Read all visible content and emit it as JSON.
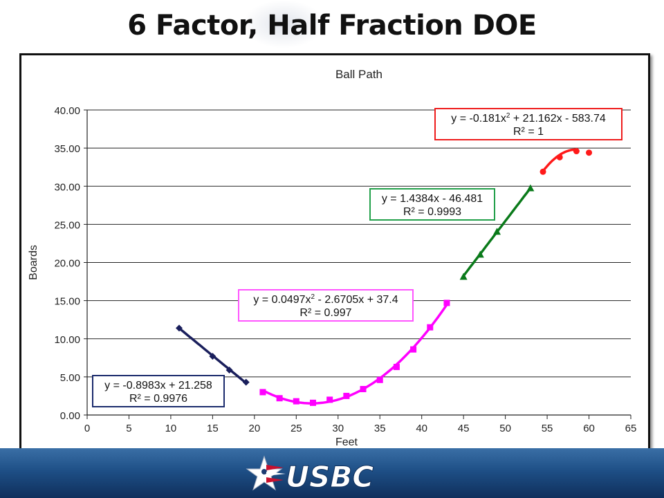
{
  "slide": {
    "title": "6 Factor, Half Fraction DOE",
    "logo_text": "USBC"
  },
  "chart_data": {
    "type": "scatter",
    "title": "Ball Path",
    "xlabel": "Feet",
    "ylabel": "Boards",
    "xlim": [
      0,
      65
    ],
    "ylim": [
      0,
      40
    ],
    "x_ticks": [
      0,
      5,
      10,
      15,
      20,
      25,
      30,
      35,
      40,
      45,
      50,
      55,
      60,
      65
    ],
    "y_ticks": [
      "0.00",
      "5.00",
      "10.00",
      "15.00",
      "20.00",
      "25.00",
      "30.00",
      "35.00",
      "40.00"
    ],
    "grid": "horizontal",
    "legend": "none",
    "series": [
      {
        "color": "#1a1f5c",
        "marker": "diamond",
        "points": [
          [
            11,
            11.4
          ],
          [
            15,
            7.7
          ],
          [
            17,
            5.9
          ],
          [
            19,
            4.3
          ]
        ],
        "trend": {
          "kind": "linear",
          "coef": [
            21.258,
            -0.8983
          ],
          "range": [
            11,
            19
          ]
        },
        "equation": "y = -0.8983x + 21.258",
        "r2": "R² = 0.9976",
        "box_color": "#1a2a6c"
      },
      {
        "color": "#ff00ff",
        "marker": "square",
        "points": [
          [
            21,
            3.0
          ],
          [
            23,
            2.2
          ],
          [
            25,
            1.8
          ],
          [
            27,
            1.6
          ],
          [
            29,
            2.0
          ],
          [
            31,
            2.5
          ],
          [
            33,
            3.4
          ],
          [
            35,
            4.6
          ],
          [
            37,
            6.3
          ],
          [
            39,
            8.6
          ],
          [
            41,
            11.5
          ],
          [
            43,
            14.7
          ]
        ],
        "trend": {
          "kind": "poly2",
          "coef": [
            37.4,
            -2.6705,
            0.0497
          ],
          "range": [
            21,
            43
          ]
        },
        "equation": "y = 0.0497x2 - 2.6705x + 37.4",
        "r2": "R² = 0.997",
        "box_color": "#ff55ff"
      },
      {
        "color": "#0a7a1a",
        "marker": "triangle",
        "points": [
          [
            45,
            18.1
          ],
          [
            47,
            21.0
          ],
          [
            49,
            24.0
          ],
          [
            53,
            29.7
          ]
        ],
        "trend": {
          "kind": "linear",
          "coef": [
            -46.481,
            1.4384
          ],
          "range": [
            45,
            53
          ]
        },
        "equation": "y = 1.4384x - 46.481",
        "r2": "R² = 0.9993",
        "box_color": "#22a04a"
      },
      {
        "color": "#ff1a1a",
        "marker": "circle",
        "points": [
          [
            54.5,
            31.9
          ],
          [
            56.5,
            33.8
          ],
          [
            58.5,
            34.6
          ],
          [
            60,
            34.4
          ]
        ],
        "trend": {
          "kind": "poly2",
          "coef": [
            -583.74,
            21.162,
            -0.181
          ],
          "range": [
            54.5,
            58.5
          ]
        },
        "equation": "y = -0.181x2 + 21.162x - 583.74",
        "r2": "R² = 1",
        "box_color": "#ee1c1c"
      }
    ]
  }
}
